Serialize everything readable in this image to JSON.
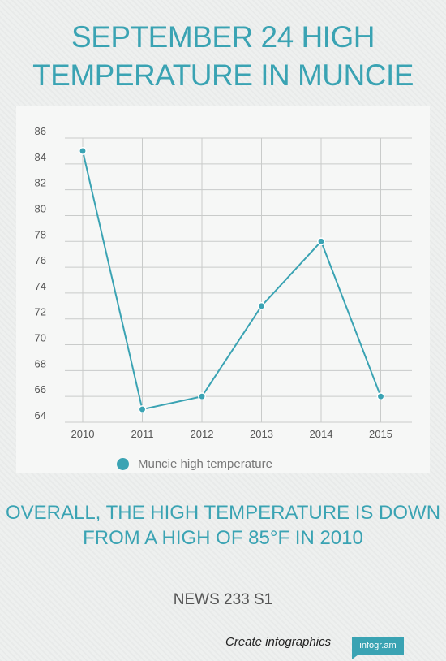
{
  "title": "September 24 high temperature in Muncie",
  "chart_data": {
    "type": "line",
    "x": [
      "2010",
      "2011",
      "2012",
      "2013",
      "2014",
      "2015"
    ],
    "series": [
      {
        "name": "Muncie high temperature",
        "values": [
          85,
          65,
          66,
          73,
          78,
          66
        ]
      }
    ],
    "yticks": [
      64,
      66,
      68,
      70,
      72,
      74,
      76,
      78,
      80,
      82,
      84,
      86
    ],
    "ylim": [
      64,
      86
    ],
    "grid": true,
    "legend": "bottom",
    "color": "#3aa3b3"
  },
  "legend_label": "Muncie high temperature",
  "summary": "Overall, the high temperature is down from a high of 85°F in 2010",
  "source": "NEWS 233 S1",
  "footer": {
    "text": "Create infographics",
    "badge": "infogr.am"
  }
}
